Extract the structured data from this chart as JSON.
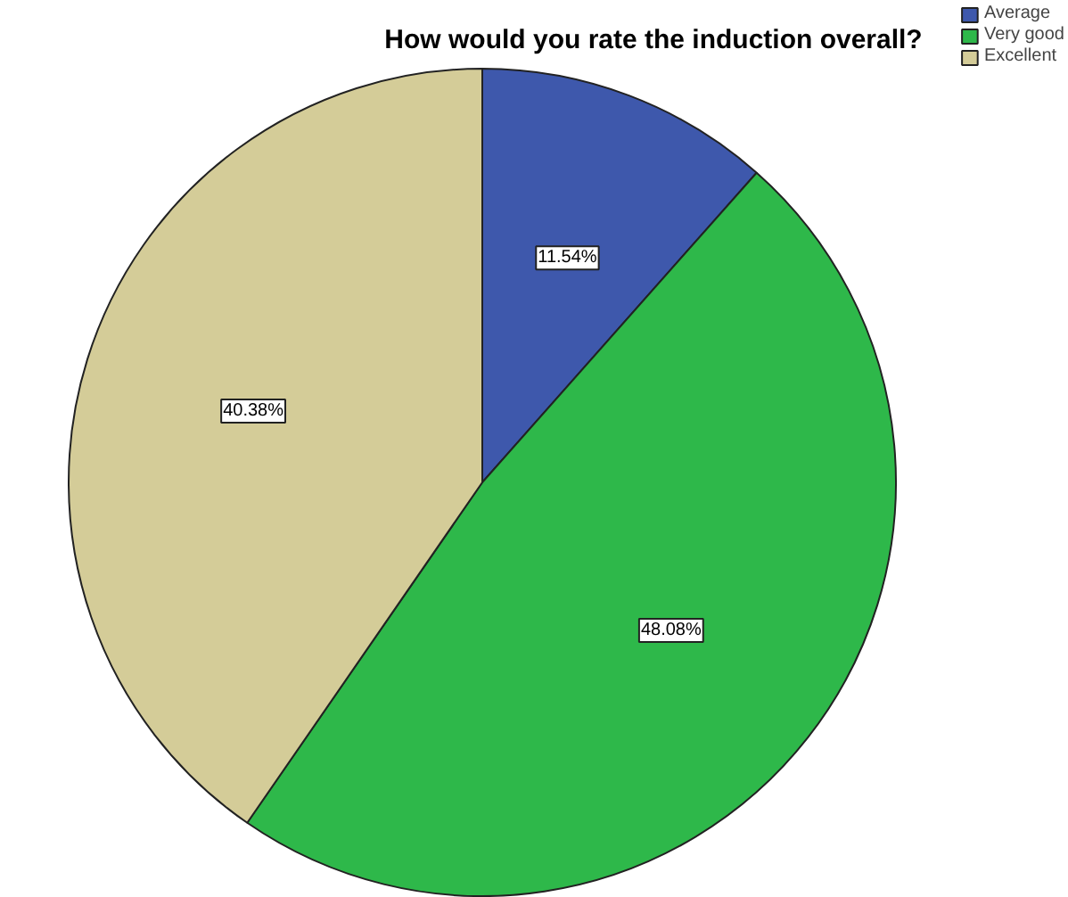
{
  "chart_data": {
    "type": "pie",
    "title": "How would you rate the induction overall?",
    "categories": [
      "Average",
      "Very good",
      "Excellent"
    ],
    "values": [
      11.54,
      48.08,
      40.38
    ],
    "colors": [
      "#3e58ac",
      "#2eb84a",
      "#d4cc98"
    ],
    "value_labels": [
      "11.54%",
      "48.08%",
      "40.38%"
    ],
    "legend": "top right"
  }
}
